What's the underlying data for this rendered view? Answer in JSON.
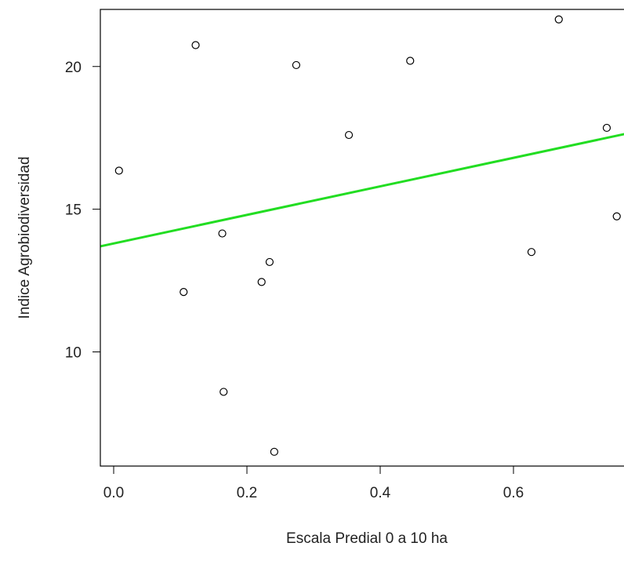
{
  "chart_data": {
    "type": "scatter",
    "title": "",
    "xlabel": "Escala Predial 0 a 10 ha",
    "ylabel": "Indice Agrobiodiversidad",
    "xlim": [
      -0.02,
      0.78
    ],
    "ylim": [
      6.0,
      22.0
    ],
    "xticks": [
      0.0,
      0.2,
      0.4,
      0.6
    ],
    "xtick_labels": [
      "0.0",
      "0.2",
      "0.4",
      "0.6"
    ],
    "yticks": [
      10,
      15,
      20
    ],
    "ytick_labels": [
      "10",
      "15",
      "20"
    ],
    "grid": false,
    "points": [
      {
        "x": 0.008,
        "y": 16.35
      },
      {
        "x": 0.105,
        "y": 12.1
      },
      {
        "x": 0.123,
        "y": 20.75
      },
      {
        "x": 0.163,
        "y": 14.15
      },
      {
        "x": 0.165,
        "y": 8.6
      },
      {
        "x": 0.222,
        "y": 12.45
      },
      {
        "x": 0.234,
        "y": 13.15
      },
      {
        "x": 0.241,
        "y": 6.5
      },
      {
        "x": 0.274,
        "y": 20.05
      },
      {
        "x": 0.353,
        "y": 17.6
      },
      {
        "x": 0.445,
        "y": 20.2
      },
      {
        "x": 0.627,
        "y": 13.5
      },
      {
        "x": 0.668,
        "y": 21.65
      },
      {
        "x": 0.74,
        "y": 17.85
      },
      {
        "x": 0.755,
        "y": 14.75
      }
    ],
    "fit_line": {
      "type": "linear",
      "color": "#22dd22",
      "intercept": 13.8,
      "slope": 5.0
    },
    "colors": {
      "points": "#000000",
      "axis": "#000000"
    }
  }
}
